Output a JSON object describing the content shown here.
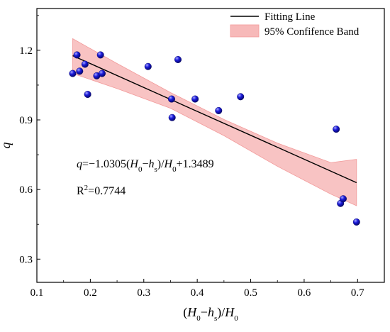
{
  "chart_data": {
    "type": "scatter",
    "xlabel": "(H0−hs)/H0",
    "ylabel": "q",
    "xlim": [
      0.1,
      0.75
    ],
    "ylim": [
      0.2,
      1.38
    ],
    "x_ticks": [
      "0.1",
      "0.2",
      "0.3",
      "0.4",
      "0.5",
      "0.6",
      "0.7"
    ],
    "y_ticks": [
      "0.3",
      "0.6",
      "0.9",
      "1.2"
    ],
    "grid": false,
    "legend_position": "top-right",
    "colors": {
      "points": "#1a1adb",
      "fit_line": "#000000",
      "band_fill": "#f7b9b9",
      "band_stroke": "#f29a9a"
    },
    "series": [
      {
        "name": "",
        "kind": "points",
        "points": [
          {
            "x": 0.167,
            "y": 1.1
          },
          {
            "x": 0.175,
            "y": 1.18
          },
          {
            "x": 0.18,
            "y": 1.11
          },
          {
            "x": 0.19,
            "y": 1.14
          },
          {
            "x": 0.195,
            "y": 1.01
          },
          {
            "x": 0.212,
            "y": 1.09
          },
          {
            "x": 0.219,
            "y": 1.18
          },
          {
            "x": 0.222,
            "y": 1.1
          },
          {
            "x": 0.308,
            "y": 1.13
          },
          {
            "x": 0.352,
            "y": 0.99
          },
          {
            "x": 0.353,
            "y": 0.91
          },
          {
            "x": 0.364,
            "y": 1.16
          },
          {
            "x": 0.396,
            "y": 0.99
          },
          {
            "x": 0.44,
            "y": 0.94
          },
          {
            "x": 0.481,
            "y": 1.0
          },
          {
            "x": 0.66,
            "y": 0.86
          },
          {
            "x": 0.668,
            "y": 0.54
          },
          {
            "x": 0.673,
            "y": 0.56
          },
          {
            "x": 0.698,
            "y": 0.46
          }
        ]
      },
      {
        "name": "Fitting Line",
        "kind": "line",
        "points": [
          {
            "x": 0.167,
            "y": 1.1768
          },
          {
            "x": 0.698,
            "y": 0.6296
          }
        ]
      },
      {
        "name": "95% Confifence Band",
        "kind": "band",
        "x": [
          0.167,
          0.25,
          0.35,
          0.45,
          0.55,
          0.65,
          0.698
        ],
        "upper": [
          1.25,
          1.143,
          1.018,
          0.902,
          0.8,
          0.716,
          0.73
        ],
        "lower": [
          1.1,
          1.035,
          0.95,
          0.832,
          0.7,
          0.58,
          0.53
        ]
      }
    ],
    "annotations": {
      "equation": {
        "parts": [
          {
            "t": "q",
            "style": "italic"
          },
          {
            "t": "=−1.0305(",
            "style": "normal"
          },
          {
            "t": "H",
            "style": "italic"
          },
          {
            "t": "0",
            "style": "sub"
          },
          {
            "t": "−",
            "style": "normal"
          },
          {
            "t": "h",
            "style": "italic"
          },
          {
            "t": "s",
            "style": "sub"
          },
          {
            "t": ")/",
            "style": "normal"
          },
          {
            "t": "H",
            "style": "italic"
          },
          {
            "t": "0",
            "style": "sub"
          },
          {
            "t": "+1.3489",
            "style": "normal"
          }
        ]
      },
      "r2": {
        "parts": [
          {
            "t": "R",
            "style": "normal"
          },
          {
            "t": "2",
            "style": "sup"
          },
          {
            "t": "=0.7744",
            "style": "normal"
          }
        ]
      }
    },
    "legend": [
      {
        "label": "Fitting Line",
        "marker": "line"
      },
      {
        "label": "95% Confifence Band",
        "marker": "band"
      }
    ]
  }
}
